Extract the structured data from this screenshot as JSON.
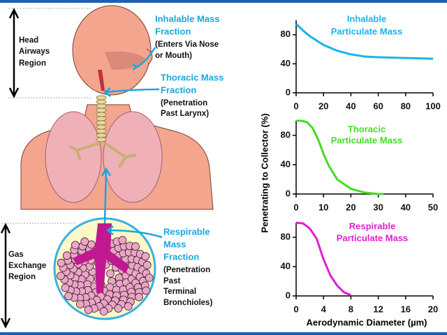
{
  "labels": {
    "head_region": [
      "Head",
      "Airways",
      "Region"
    ],
    "gas_region": [
      "Gas",
      "Exchange",
      "Region"
    ],
    "inhalable": {
      "title": [
        "Inhalable Mass",
        "Fraction"
      ],
      "note": [
        "(Enters Via Nose",
        "or Mouth)"
      ]
    },
    "thoracic": {
      "title": [
        "Thoracic Mass",
        "Fraction"
      ],
      "note": [
        "(Penetration",
        "Past Larynx)"
      ]
    },
    "respirable": {
      "title": [
        "Respirable",
        "Mass",
        "Fraction"
      ],
      "note": [
        "(Penetration",
        "Past",
        "Terminal",
        "Bronchioles)"
      ]
    }
  },
  "chart_data": [
    {
      "type": "line",
      "title": [
        "Inhalable",
        "Particulate Mass"
      ],
      "color": "#1ab4e8",
      "x": [
        0,
        5,
        10,
        20,
        30,
        40,
        50,
        60,
        80,
        100
      ],
      "values": [
        95,
        86,
        78,
        66,
        58,
        53,
        50,
        49,
        48,
        47
      ],
      "xlim": [
        0,
        100
      ],
      "xticks": [
        0,
        20,
        40,
        60,
        80,
        100
      ],
      "ylim": [
        0,
        100
      ],
      "yticks": [
        0,
        40,
        80
      ]
    },
    {
      "type": "line",
      "title": [
        "Thoracic",
        "Particulate Mass"
      ],
      "color": "#44dd22",
      "x": [
        0,
        2,
        4,
        6,
        8,
        10,
        12,
        15,
        20,
        25,
        30,
        32
      ],
      "values": [
        100,
        100,
        98,
        90,
        75,
        55,
        38,
        20,
        7,
        2,
        0,
        0
      ],
      "xlim": [
        0,
        50
      ],
      "xticks": [
        0,
        10,
        20,
        30,
        40,
        50
      ],
      "ylim": [
        0,
        100
      ],
      "yticks": [
        0,
        40,
        80
      ],
      "ylabel": "Penetrating to Collector (%)"
    },
    {
      "type": "line",
      "title": [
        "Respirable",
        "Particulate Mass"
      ],
      "color": "#e020d0",
      "x": [
        0,
        1,
        2,
        3,
        4,
        5,
        6,
        7,
        8
      ],
      "values": [
        100,
        99,
        92,
        78,
        50,
        28,
        14,
        5,
        1
      ],
      "xlim": [
        0,
        20
      ],
      "xticks": [
        0,
        4,
        8,
        12,
        16,
        20
      ],
      "ylim": [
        0,
        100
      ],
      "yticks": [
        0,
        40,
        80
      ],
      "xlabel": "Aerodynamic Diameter (µm)"
    }
  ]
}
